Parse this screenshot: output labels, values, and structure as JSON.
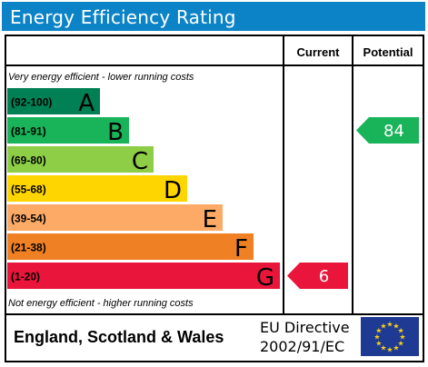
{
  "title": "Energy Efficiency Rating",
  "columns": {
    "current": "Current",
    "potential": "Potential"
  },
  "top_note": "Very energy efficient - lower running costs",
  "bottom_note": "Not energy efficient - higher running costs",
  "footer": {
    "country": "England, Scotland & Wales",
    "directive_line1": "EU Directive",
    "directive_line2": "2002/91/EC"
  },
  "colors": {
    "title_bar": "#0c83c6",
    "flag": "#1f3a93",
    "stars": "#f7d117"
  },
  "chart_data": {
    "type": "bar",
    "bands": [
      {
        "letter": "A",
        "range": "(92-100)",
        "color": "#008054"
      },
      {
        "letter": "B",
        "range": "(81-91)",
        "color": "#19b459"
      },
      {
        "letter": "C",
        "range": "(69-80)",
        "color": "#8dce46"
      },
      {
        "letter": "D",
        "range": "(55-68)",
        "color": "#ffd500"
      },
      {
        "letter": "E",
        "range": "(39-54)",
        "color": "#fcaa65"
      },
      {
        "letter": "F",
        "range": "(21-38)",
        "color": "#ef8023"
      },
      {
        "letter": "G",
        "range": "(1-20)",
        "color": "#e9153b"
      }
    ],
    "current": {
      "value": 6,
      "band": "G",
      "color": "#e9153b"
    },
    "potential": {
      "value": 84,
      "band": "B",
      "color": "#19b459"
    }
  }
}
